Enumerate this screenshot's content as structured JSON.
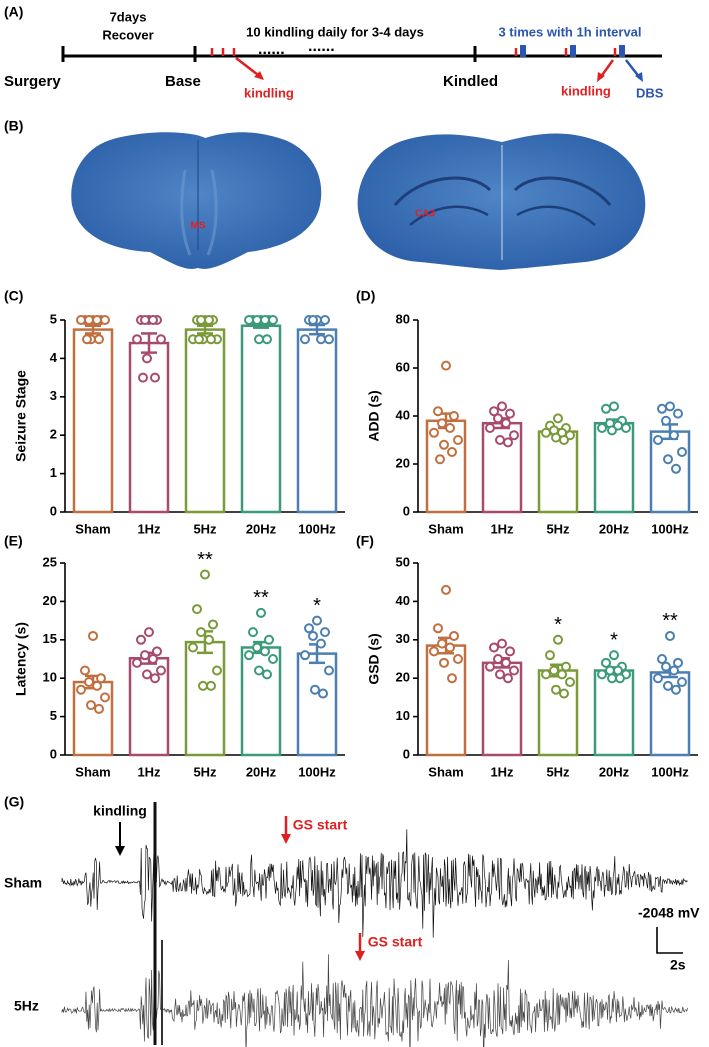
{
  "panel_labels": [
    "(A)",
    "(B)",
    "(C)",
    "(D)",
    "(E)",
    "(F)",
    "(G)"
  ],
  "timeline": {
    "start": "Surgery",
    "recover_1": "7days",
    "recover_2": "Recover",
    "base": "Base",
    "daily": "10 kindling daily for 3-4 days",
    "kindling_1": "kindling",
    "kindled": "Kindled",
    "interval": "3 times with 1h interval",
    "kindling_2": "kindling",
    "dbs": "DBS"
  },
  "brain": {
    "left_label": "MS",
    "right_label": "CA3"
  },
  "chart_data": [
    {
      "type": "bar",
      "y_label": "Seizure Stage",
      "categories": [
        "Sham",
        "1Hz",
        "5Hz",
        "20Hz",
        "100Hz"
      ],
      "colors": [
        "#c0703f",
        "#a84a6d",
        "#7a9a3a",
        "#3a9a7a",
        "#4a7fb0"
      ],
      "values": [
        4.75,
        4.4,
        4.75,
        4.85,
        4.75
      ],
      "errors": [
        0.1,
        0.25,
        0.1,
        0.05,
        0.12
      ],
      "points": [
        [
          5,
          5,
          5,
          5,
          5,
          5,
          5,
          4.5,
          4.5,
          4.5
        ],
        [
          5,
          5,
          5,
          5,
          5,
          4.5,
          4.5,
          4,
          3.5,
          3.5
        ],
        [
          5,
          5,
          5,
          5,
          5,
          4.5,
          4.5,
          4.5,
          4.5,
          4.5
        ],
        [
          5,
          5,
          5,
          5,
          5,
          5,
          5,
          4.5,
          4.5
        ],
        [
          5,
          5,
          5,
          5,
          4.5,
          4.5,
          4.5
        ]
      ],
      "significance": [
        null,
        null,
        null,
        null,
        null
      ],
      "ylim": [
        0,
        5
      ],
      "yticks": [
        0,
        1,
        2,
        3,
        4,
        5
      ]
    },
    {
      "type": "bar",
      "y_label": "ADD (s)",
      "categories": [
        "Sham",
        "1Hz",
        "5Hz",
        "20Hz",
        "100Hz"
      ],
      "colors": [
        "#c0703f",
        "#a84a6d",
        "#7a9a3a",
        "#3a9a7a",
        "#4a7fb0"
      ],
      "values": [
        38,
        37,
        33.5,
        37,
        33.5
      ],
      "errors": [
        3,
        2,
        1,
        1.5,
        3
      ],
      "points": [
        [
          61,
          42,
          40,
          37,
          35,
          33,
          30,
          28,
          25,
          22
        ],
        [
          44,
          42,
          41,
          39,
          37,
          35,
          32,
          30,
          29
        ],
        [
          39,
          36,
          35,
          34,
          33,
          33,
          32,
          31,
          30
        ],
        [
          44,
          43,
          38,
          37,
          36,
          35,
          35,
          34
        ],
        [
          44,
          43,
          41,
          38,
          32,
          30,
          25,
          22,
          18
        ]
      ],
      "significance": [
        null,
        null,
        null,
        null,
        null
      ],
      "ylim": [
        0,
        80
      ],
      "yticks": [
        0,
        20,
        40,
        60,
        80
      ]
    },
    {
      "type": "bar",
      "y_label": "Latency (s)",
      "categories": [
        "Sham",
        "1Hz",
        "5Hz",
        "20Hz",
        "100Hz"
      ],
      "colors": [
        "#c0703f",
        "#a84a6d",
        "#7a9a3a",
        "#3a9a7a",
        "#4a7fb0"
      ],
      "values": [
        9.5,
        12.6,
        14.7,
        14,
        13.2
      ],
      "errors": [
        0.8,
        0.7,
        1.4,
        0.7,
        1.2
      ],
      "points": [
        [
          15.5,
          11,
          10,
          9.5,
          9,
          8.5,
          7.5,
          6.5,
          6
        ],
        [
          16,
          15,
          13.5,
          13,
          12.5,
          12,
          11,
          10.5,
          10
        ],
        [
          23.5,
          19,
          17,
          16,
          15,
          14,
          11,
          9,
          9
        ],
        [
          18.5,
          16,
          15,
          14,
          13.5,
          13,
          12.5,
          11,
          10.5
        ],
        [
          17.5,
          16.5,
          16,
          15.5,
          14.5,
          13,
          11,
          8.5,
          8
        ]
      ],
      "significance": [
        null,
        null,
        "**",
        "**",
        "*"
      ],
      "ylim": [
        0,
        25
      ],
      "yticks": [
        0,
        5,
        10,
        15,
        20,
        25
      ]
    },
    {
      "type": "bar",
      "y_label": "GSD (s)",
      "categories": [
        "Sham",
        "1Hz",
        "5Hz",
        "20Hz",
        "100Hz"
      ],
      "colors": [
        "#c0703f",
        "#a84a6d",
        "#7a9a3a",
        "#3a9a7a",
        "#4a7fb0"
      ],
      "values": [
        28.5,
        24,
        22,
        22,
        21.5
      ],
      "errors": [
        2,
        1.2,
        1.5,
        0.8,
        1.2
      ],
      "points": [
        [
          43,
          33,
          31,
          29,
          28,
          27,
          25,
          24,
          20
        ],
        [
          29,
          28,
          27,
          25,
          24,
          23,
          22,
          21,
          20
        ],
        [
          30,
          26,
          23,
          22,
          21,
          21,
          19,
          17,
          16
        ],
        [
          26,
          24,
          23,
          22,
          22,
          21,
          21,
          20,
          20
        ],
        [
          31,
          25,
          24,
          23,
          22,
          20,
          19,
          18,
          17
        ]
      ],
      "significance": [
        null,
        null,
        "*",
        "*",
        "**"
      ],
      "ylim": [
        0,
        50
      ],
      "yticks": [
        0,
        10,
        20,
        30,
        40,
        50
      ]
    }
  ],
  "traces": {
    "rows": [
      "Sham",
      "5Hz"
    ],
    "kindling": "kindling",
    "gs_start_1": "GS start",
    "gs_start_2": "GS start",
    "scale_y": "-2048 mV",
    "scale_x": "2s"
  }
}
